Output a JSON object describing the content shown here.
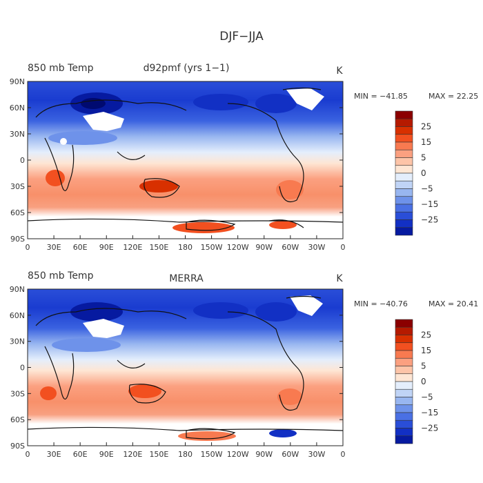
{
  "figure": {
    "title": "DJF−JJA"
  },
  "panels": [
    {
      "left_title": "850 mb Temp",
      "center_title": "d92pmf (yrs 1−1)",
      "units": "K",
      "min_label": "MIN = −41.85",
      "max_label": "MAX =  22.25",
      "min": -41.85,
      "max": 22.25
    },
    {
      "left_title": "850 mb Temp",
      "center_title": "MERRA",
      "units": "K",
      "min_label": "MIN = −40.76",
      "max_label": "MAX =  20.41",
      "min": -40.76,
      "max": 20.41
    }
  ],
  "axes": {
    "lat_ticks": [
      "90N",
      "60N",
      "30N",
      "0",
      "30S",
      "60S",
      "90S"
    ],
    "lon_ticks": [
      "0",
      "30E",
      "60E",
      "90E",
      "120E",
      "150E",
      "180",
      "150W",
      "120W",
      "90W",
      "60W",
      "30W",
      "0"
    ]
  },
  "colorbar": {
    "tick_labels": [
      "25",
      "15",
      "5",
      "0",
      "−5",
      "−15",
      "−25"
    ],
    "colors": [
      "#8b0000",
      "#b51a00",
      "#d83000",
      "#f25020",
      "#f87a50",
      "#fba080",
      "#fdc4a8",
      "#fee6d4",
      "#e4eefc",
      "#c0d4f6",
      "#98b6f0",
      "#6e92ea",
      "#4a70e4",
      "#2a4ed8",
      "#1230c4",
      "#061aa0"
    ]
  }
}
